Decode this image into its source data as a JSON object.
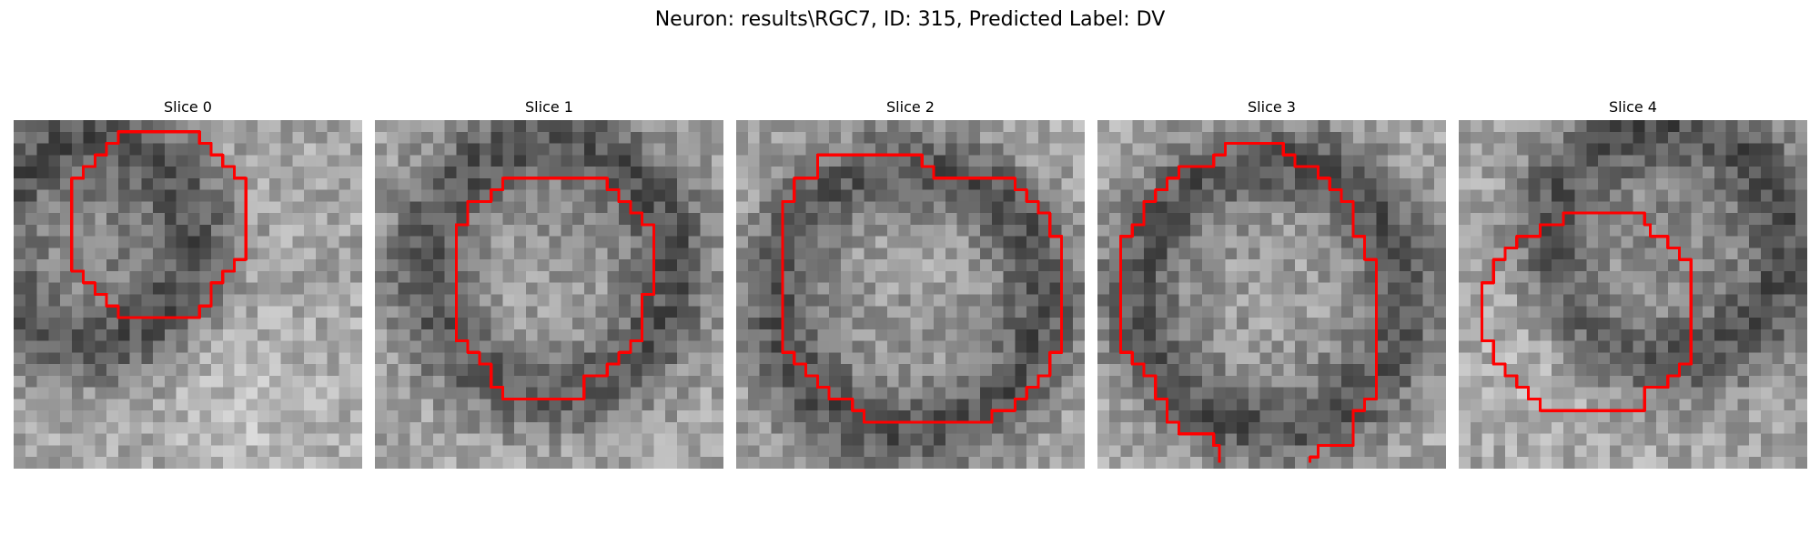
{
  "figure": {
    "title": "Neuron: results\\RGC7, ID: 315, Predicted Label: DV"
  },
  "panels": [
    {
      "title": "Slice 0",
      "seed": 11,
      "dark_center": [
        0.22,
        0.35
      ],
      "dark_radius": 0.35,
      "bright_center": [
        0.7,
        0.85
      ],
      "contour_color": "#ff0000"
    },
    {
      "title": "Slice 1",
      "seed": 23,
      "dark_center": [
        0.5,
        0.42
      ],
      "dark_radius": 0.42,
      "bright_center": [
        0.45,
        0.5
      ],
      "contour_color": "#ff0000"
    },
    {
      "title": "Slice 2",
      "seed": 37,
      "dark_center": [
        0.5,
        0.52
      ],
      "dark_radius": 0.45,
      "bright_center": [
        0.5,
        0.45
      ],
      "contour_color": "#ff0000"
    },
    {
      "title": "Slice 3",
      "seed": 41,
      "dark_center": [
        0.5,
        0.5
      ],
      "dark_radius": 0.45,
      "bright_center": [
        0.5,
        0.5
      ],
      "contour_color": "#ff0000"
    },
    {
      "title": "Slice 4",
      "seed": 59,
      "dark_center": [
        0.6,
        0.35
      ],
      "dark_radius": 0.4,
      "bright_center": [
        0.3,
        0.6
      ],
      "contour_color": "#ff0000"
    }
  ],
  "colormap": "gray",
  "grid_size": 30
}
